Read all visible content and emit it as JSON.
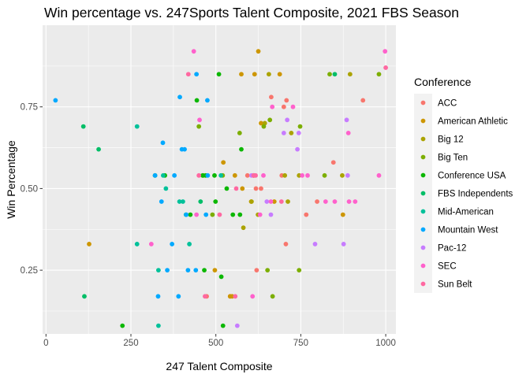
{
  "chart_data": {
    "type": "scatter",
    "title": "Win percentage vs. 247Sports Talent Composite, 2021 FBS Season",
    "xlabel": "247 Talent Composite",
    "ylabel": "Win Percentage",
    "xlim": [
      -10,
      1030
    ],
    "ylim": [
      0.055,
      1.0
    ],
    "xticks": [
      0,
      250,
      500,
      750,
      1000
    ],
    "xtick_labels": [
      "0",
      "250",
      "500",
      "750",
      "1000"
    ],
    "yticks": [
      0.25,
      0.5,
      0.75
    ],
    "ytick_labels": [
      "0.25",
      "0.50",
      "0.75"
    ],
    "grid": true,
    "legend_title": "Conference",
    "legend_position": "right",
    "series": [
      {
        "name": "ACC",
        "color": "#F8766D",
        "points": [
          [
            593,
            0.54
          ],
          [
            610,
            0.54
          ],
          [
            618,
            0.5
          ],
          [
            633,
            0.5
          ],
          [
            663,
            0.78
          ],
          [
            700,
            0.75
          ],
          [
            708,
            0.77
          ],
          [
            766,
            0.42
          ],
          [
            798,
            0.46
          ],
          [
            846,
            0.58
          ],
          [
            933,
            0.77
          ],
          [
            706,
            0.33
          ],
          [
            473,
            0.17
          ],
          [
            620,
            0.25
          ],
          [
            694,
            0.54
          ],
          [
            542,
            0.17
          ]
        ]
      },
      {
        "name": "American Athletic",
        "color": "#CD9600",
        "points": [
          [
            127,
            0.33
          ],
          [
            497,
            0.25
          ],
          [
            548,
            0.17
          ],
          [
            556,
            0.54
          ],
          [
            575,
            0.85
          ],
          [
            578,
            0.5
          ],
          [
            604,
            0.46
          ],
          [
            614,
            0.85
          ],
          [
            625,
            0.92
          ],
          [
            672,
            0.46
          ],
          [
            688,
            0.85
          ],
          [
            874,
            0.42
          ],
          [
            522,
            0.58
          ],
          [
            542,
            0.17
          ],
          [
            633,
            0.7
          ]
        ]
      },
      {
        "name": "Big 12",
        "color": "#ABA300",
        "points": [
          [
            581,
            0.38
          ],
          [
            605,
            0.46
          ],
          [
            624,
            0.42
          ],
          [
            644,
            0.7
          ],
          [
            656,
            0.85
          ],
          [
            703,
            0.54
          ],
          [
            722,
            0.67
          ],
          [
            712,
            0.46
          ],
          [
            895,
            0.85
          ],
          [
            872,
            0.54
          ],
          [
            612,
            0.54
          ],
          [
            745,
            0.54
          ]
        ]
      },
      {
        "name": "Big Ten",
        "color": "#7CAE00",
        "points": [
          [
            450,
            0.69
          ],
          [
            463,
            0.54
          ],
          [
            490,
            0.42
          ],
          [
            520,
            0.54
          ],
          [
            570,
            0.67
          ],
          [
            641,
            0.69
          ],
          [
            652,
            0.25
          ],
          [
            659,
            0.71
          ],
          [
            667,
            0.17
          ],
          [
            745,
            0.25
          ],
          [
            748,
            0.69
          ],
          [
            820,
            0.54
          ],
          [
            835,
            0.85
          ],
          [
            980,
            0.85
          ]
        ]
      },
      {
        "name": "Conference USA",
        "color": "#0CB702",
        "points": [
          [
            225,
            0.08
          ],
          [
            321,
            0.54
          ],
          [
            350,
            0.54
          ],
          [
            425,
            0.42
          ],
          [
            444,
            0.77
          ],
          [
            461,
            0.54
          ],
          [
            466,
            0.25
          ],
          [
            470,
            0.54
          ],
          [
            496,
            0.54
          ],
          [
            516,
            0.23
          ],
          [
            521,
            0.08
          ],
          [
            532,
            0.5
          ],
          [
            550,
            0.42
          ],
          [
            571,
            0.42
          ],
          [
            575,
            0.62
          ],
          [
            509,
            0.85
          ],
          [
            499,
            0.46
          ]
        ]
      },
      {
        "name": "FBS Independents",
        "color": "#00BE67",
        "points": [
          [
            113,
            0.17
          ],
          [
            110,
            0.69
          ],
          [
            155,
            0.62
          ],
          [
            455,
            0.46
          ],
          [
            850,
            0.85
          ]
        ]
      },
      {
        "name": "Mid-American",
        "color": "#00C19A",
        "points": [
          [
            268,
            0.69
          ],
          [
            268,
            0.33
          ],
          [
            331,
            0.25
          ],
          [
            331,
            0.08
          ],
          [
            345,
            0.54
          ],
          [
            353,
            0.5
          ],
          [
            393,
            0.46
          ],
          [
            403,
            0.46
          ],
          [
            422,
            0.33
          ],
          [
            412,
            0.42
          ],
          [
            515,
            0.54
          ]
        ]
      },
      {
        "name": "Mountain West",
        "color": "#00A9FF",
        "points": [
          [
            28,
            0.77
          ],
          [
            321,
            0.54
          ],
          [
            330,
            0.17
          ],
          [
            340,
            0.46
          ],
          [
            344,
            0.64
          ],
          [
            357,
            0.25
          ],
          [
            371,
            0.33
          ],
          [
            378,
            0.54
          ],
          [
            390,
            0.17
          ],
          [
            394,
            0.78
          ],
          [
            400,
            0.62
          ],
          [
            408,
            0.62
          ],
          [
            413,
            0.42
          ],
          [
            418,
            0.25
          ],
          [
            441,
            0.25
          ],
          [
            443,
            0.85
          ],
          [
            475,
            0.77
          ],
          [
            476,
            0.54
          ],
          [
            471,
            0.42
          ]
        ]
      },
      {
        "name": "Pac-12",
        "color": "#C77CFF",
        "points": [
          [
            563,
            0.08
          ],
          [
            605,
            0.54
          ],
          [
            650,
            0.46
          ],
          [
            662,
            0.42
          ],
          [
            700,
            0.67
          ],
          [
            710,
            0.71
          ],
          [
            740,
            0.62
          ],
          [
            744,
            0.67
          ],
          [
            792,
            0.33
          ],
          [
            876,
            0.33
          ],
          [
            885,
            0.71
          ],
          [
            888,
            0.54
          ]
        ]
      },
      {
        "name": "SEC",
        "color": "#FF61CC",
        "points": [
          [
            310,
            0.33
          ],
          [
            435,
            0.92
          ],
          [
            443,
            0.42
          ],
          [
            452,
            0.71
          ],
          [
            608,
            0.17
          ],
          [
            630,
            0.42
          ],
          [
            662,
            0.46
          ],
          [
            666,
            0.75
          ],
          [
            727,
            0.75
          ],
          [
            754,
            0.54
          ],
          [
            823,
            0.46
          ],
          [
            850,
            0.46
          ],
          [
            890,
            0.67
          ],
          [
            892,
            0.46
          ],
          [
            910,
            0.46
          ],
          [
            998,
            0.92
          ],
          [
            980,
            0.54
          ],
          [
            770,
            0.54
          ],
          [
            640,
            0.54
          ]
        ]
      },
      {
        "name": "Sun Belt",
        "color": "#FF68A1",
        "points": [
          [
            419,
            0.85
          ],
          [
            468,
            0.17
          ],
          [
            511,
            0.42
          ],
          [
            557,
            0.17
          ],
          [
            560,
            0.5
          ],
          [
            611,
            0.54
          ],
          [
            617,
            0.54
          ],
          [
            693,
            0.46
          ],
          [
            1000,
            0.87
          ],
          [
            450,
            0.54
          ]
        ]
      }
    ]
  }
}
